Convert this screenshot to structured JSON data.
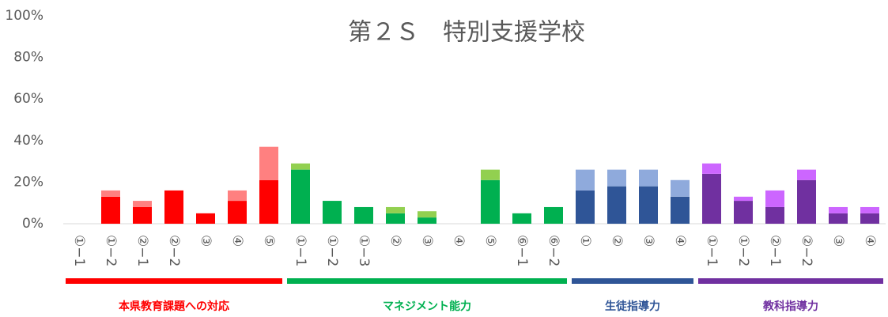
{
  "chart_data": {
    "type": "bar",
    "stacked": true,
    "title": "第２Ｓ　特別支援学校",
    "ylim": [
      0,
      100
    ],
    "yticks": [
      {
        "value": 0,
        "label": "0%"
      },
      {
        "value": 20,
        "label": "20%"
      },
      {
        "value": 40,
        "label": "40%"
      },
      {
        "value": 60,
        "label": "60%"
      },
      {
        "value": 80,
        "label": "80%"
      },
      {
        "value": 100,
        "label": "100%"
      }
    ],
    "groups": [
      {
        "name": "本県教育課題への対応",
        "color": "#ff0000",
        "categories": [
          "①−1",
          "①−2",
          "②−1",
          "②−2",
          "③",
          "④",
          "⑤"
        ],
        "series": [
          {
            "color": "#ff0000",
            "values": [
              0,
              13,
              8,
              16,
              5,
              11,
              21
            ]
          },
          {
            "color": "#ff8080",
            "values": [
              0,
              3,
              3,
              0,
              0,
              5,
              16
            ]
          }
        ]
      },
      {
        "name": "マネジメント能力",
        "color": "#00b050",
        "categories": [
          "①−1",
          "①−2",
          "①−3",
          "②",
          "③",
          "④",
          "⑤",
          "⑥−1",
          "⑥−2"
        ],
        "series": [
          {
            "color": "#00b050",
            "values": [
              26,
              11,
              8,
              5,
              3,
              0,
              21,
              5,
              8
            ]
          },
          {
            "color": "#92d050",
            "values": [
              3,
              0,
              0,
              3,
              3,
              0,
              5,
              0,
              0
            ]
          }
        ]
      },
      {
        "name": "生徒指導力",
        "color": "#2f5597",
        "categories": [
          "①",
          "②",
          "③",
          "④"
        ],
        "series": [
          {
            "color": "#2f5597",
            "values": [
              16,
              18,
              18,
              13
            ]
          },
          {
            "color": "#8faadc",
            "values": [
              10,
              8,
              8,
              8
            ]
          }
        ]
      },
      {
        "name": "教科指導力",
        "color": "#7030a0",
        "categories": [
          "①−1",
          "①−2",
          "②−1",
          "②−2",
          "③",
          "④"
        ],
        "series": [
          {
            "color": "#7030a0",
            "values": [
              24,
              11,
              8,
              21,
              5,
              5
            ]
          },
          {
            "color": "#cc66ff",
            "values": [
              5,
              2,
              8,
              5,
              3,
              3
            ]
          }
        ]
      }
    ]
  }
}
